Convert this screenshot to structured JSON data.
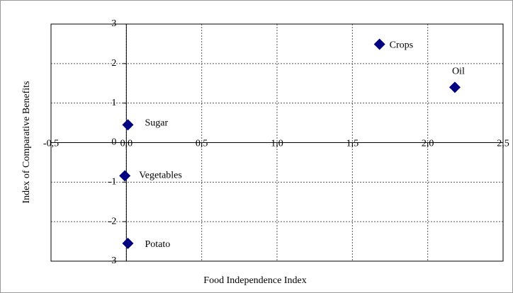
{
  "chart_data": {
    "type": "scatter",
    "xlabel": "Food Independence Index",
    "ylabel": "Index of Comparative Benefits",
    "labels": [
      "Crops",
      "Oil",
      "Sugar",
      "Vegetables",
      "Potato"
    ],
    "x": [
      1.68,
      2.18,
      0.01,
      -0.01,
      0.01
    ],
    "values": [
      2.49,
      1.4,
      0.45,
      -0.84,
      -2.55
    ],
    "color": "#000080",
    "xlim": [
      -0.5,
      2.5
    ],
    "ylim": [
      -3,
      3
    ],
    "xticks": [
      {
        "value": -0.5,
        "label": "-0,5"
      },
      {
        "value": 0,
        "label": "0,0"
      },
      {
        "value": 0.5,
        "label": "0,5"
      },
      {
        "value": 1,
        "label": "1,0"
      },
      {
        "value": 1.5,
        "label": "1,5"
      },
      {
        "value": 2,
        "label": "2,0"
      },
      {
        "value": 2.5,
        "label": "2,5"
      }
    ],
    "yticks": [
      -3,
      -2,
      -1,
      0,
      1,
      2,
      3
    ],
    "grid": true
  }
}
